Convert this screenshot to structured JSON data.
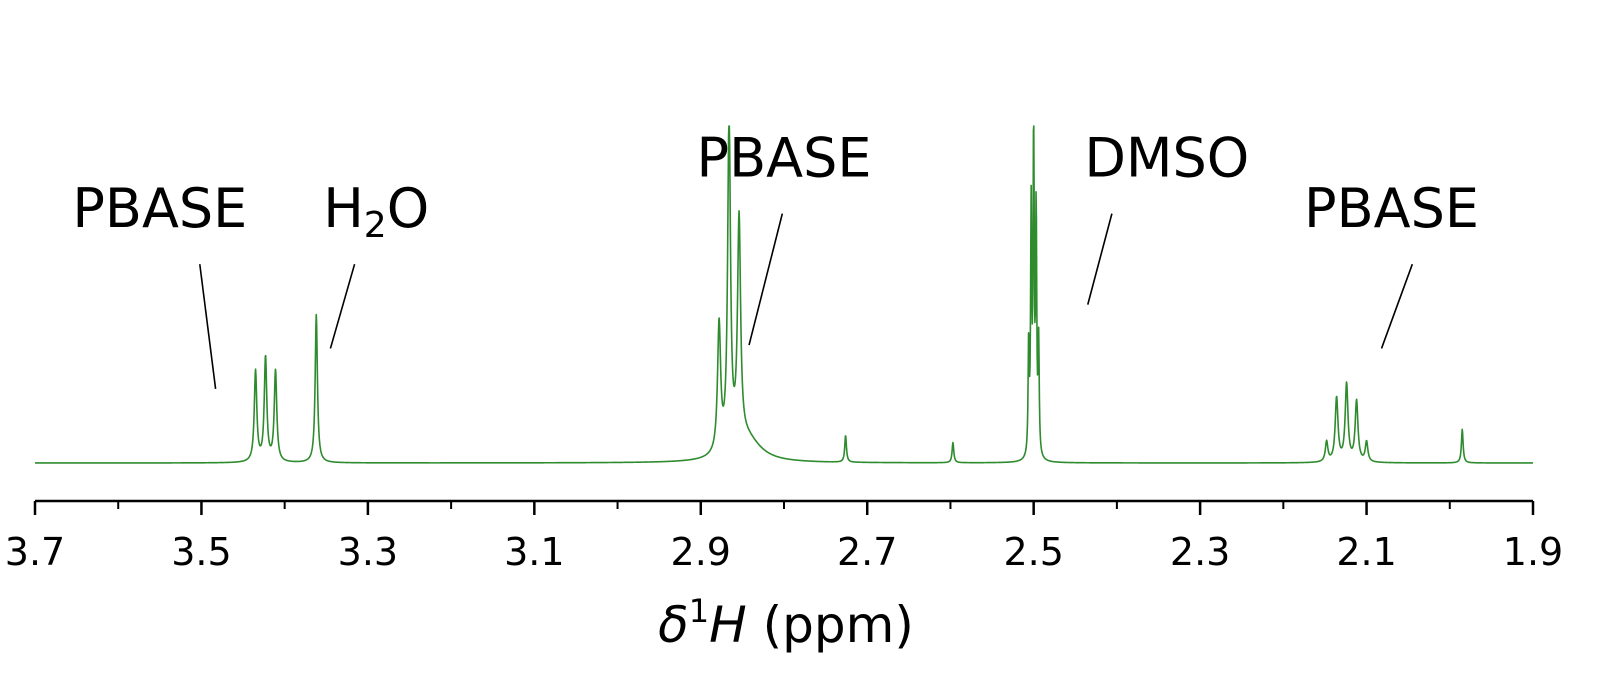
{
  "chart_data": {
    "type": "line",
    "xlabel": {
      "delta": "δ",
      "sup": "1",
      "nucleus": "H",
      "unit": " (ppm)"
    },
    "xlim": [
      3.7,
      1.9
    ],
    "x_reversed": true,
    "x_ticks": [
      "3.7",
      "3.5",
      "3.3",
      "3.1",
      "2.9",
      "2.7",
      "2.5",
      "2.3",
      "2.1",
      "1.9"
    ],
    "y_axis_visible": false,
    "grid": false,
    "series": [
      {
        "color": "#2e8b2e",
        "peaks": [
          {
            "ppm": 3.435,
            "height": 0.27,
            "width": 0.0018
          },
          {
            "ppm": 3.423,
            "height": 0.31,
            "width": 0.0018
          },
          {
            "ppm": 3.411,
            "height": 0.27,
            "width": 0.0018
          },
          {
            "ppm": 3.362,
            "height": 0.44,
            "width": 0.0016
          },
          {
            "ppm": 2.878,
            "height": 0.38,
            "width": 0.0022
          },
          {
            "ppm": 2.866,
            "height": 0.99,
            "width": 0.002
          },
          {
            "ppm": 2.854,
            "height": 0.66,
            "width": 0.0022
          },
          {
            "ppm": 2.845,
            "height": 0.07,
            "width": 0.02
          },
          {
            "ppm": 2.726,
            "height": 0.08,
            "width": 0.0012
          },
          {
            "ppm": 2.597,
            "height": 0.06,
            "width": 0.0012
          },
          {
            "ppm": 2.506,
            "height": 0.33,
            "width": 0.0008
          },
          {
            "ppm": 2.503,
            "height": 0.72,
            "width": 0.0008
          },
          {
            "ppm": 2.5,
            "height": 1.0,
            "width": 0.0008
          },
          {
            "ppm": 2.497,
            "height": 0.72,
            "width": 0.0008
          },
          {
            "ppm": 2.494,
            "height": 0.33,
            "width": 0.0008
          },
          {
            "ppm": 2.148,
            "height": 0.06,
            "width": 0.0018
          },
          {
            "ppm": 2.136,
            "height": 0.19,
            "width": 0.002
          },
          {
            "ppm": 2.124,
            "height": 0.23,
            "width": 0.002
          },
          {
            "ppm": 2.112,
            "height": 0.18,
            "width": 0.002
          },
          {
            "ppm": 2.1,
            "height": 0.06,
            "width": 0.0018
          },
          {
            "ppm": 1.985,
            "height": 0.1,
            "width": 0.0012
          }
        ]
      }
    ],
    "annotations": [
      {
        "text": "PBASE",
        "sub": "",
        "after": "",
        "ppm_text": 3.55,
        "level_text": 0.7,
        "ppm_from": 3.502,
        "level_from": 0.59,
        "ppm_to": 3.483,
        "level_to": 0.22
      },
      {
        "text": "H",
        "sub": "2",
        "after": "O",
        "ppm_text": 3.29,
        "level_text": 0.7,
        "ppm_from": 3.316,
        "level_from": 0.59,
        "ppm_to": 3.345,
        "level_to": 0.34
      },
      {
        "text": "PBASE",
        "sub": "",
        "after": "",
        "ppm_text": 2.8,
        "level_text": 0.85,
        "ppm_from": 2.802,
        "level_from": 0.74,
        "ppm_to": 2.842,
        "level_to": 0.35
      },
      {
        "text": "DMSO",
        "sub": "",
        "after": "",
        "ppm_text": 2.34,
        "level_text": 0.85,
        "ppm_from": 2.406,
        "level_from": 0.74,
        "ppm_to": 2.435,
        "level_to": 0.47
      },
      {
        "text": "PBASE",
        "sub": "",
        "after": "",
        "ppm_text": 2.07,
        "level_text": 0.7,
        "ppm_from": 2.045,
        "level_from": 0.59,
        "ppm_to": 2.082,
        "level_to": 0.34
      }
    ]
  }
}
